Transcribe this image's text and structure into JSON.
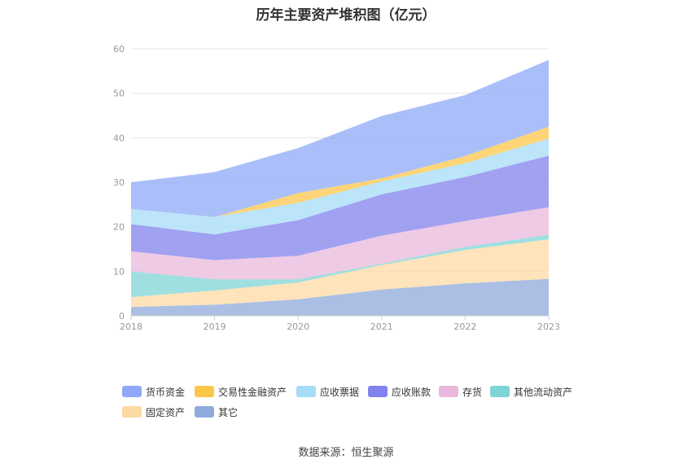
{
  "title": "历年主要资产堆积图（亿元）",
  "source": "数据来源：恒生聚源",
  "chart_data": {
    "type": "area",
    "stacked": true,
    "categories": [
      "2018",
      "2019",
      "2020",
      "2021",
      "2022",
      "2023"
    ],
    "ylim": [
      0,
      60
    ],
    "yticks": [
      0,
      10,
      20,
      30,
      40,
      50,
      60
    ],
    "grid": true,
    "legend_position": "bottom",
    "series": [
      {
        "name": "其它",
        "color": "#8faadc",
        "values": [
          2.0,
          2.5,
          3.7,
          5.9,
          7.3,
          8.3
        ]
      },
      {
        "name": "固定资产",
        "color": "#fdd9a4",
        "values": [
          2.2,
          3.2,
          3.8,
          5.5,
          7.5,
          8.9
        ]
      },
      {
        "name": "其他流动资产",
        "color": "#7fd4d4",
        "values": [
          5.8,
          2.5,
          0.7,
          0.3,
          0.7,
          1.0
        ]
      },
      {
        "name": "存货",
        "color": "#eab8dc",
        "values": [
          4.5,
          4.3,
          5.3,
          6.3,
          5.8,
          6.2
        ]
      },
      {
        "name": "应收账款",
        "color": "#8282ee",
        "values": [
          6.1,
          5.8,
          8.0,
          9.3,
          9.9,
          11.6
        ]
      },
      {
        "name": "应收票据",
        "color": "#a6dcf7",
        "values": [
          3.4,
          3.9,
          3.9,
          2.9,
          3.1,
          3.8
        ]
      },
      {
        "name": "交易性金融资产",
        "color": "#fcc64a",
        "values": [
          0.0,
          0.0,
          2.2,
          0.7,
          1.6,
          2.7
        ]
      },
      {
        "name": "货币资金",
        "color": "#8ea9f7",
        "values": [
          6.0,
          10.1,
          10.1,
          14.0,
          13.7,
          15.0
        ]
      }
    ]
  },
  "legend": {
    "items": [
      {
        "label": "货币资金",
        "color": "#8ea9f7"
      },
      {
        "label": "交易性金融资产",
        "color": "#fcc64a"
      },
      {
        "label": "应收票据",
        "color": "#a6dcf7"
      },
      {
        "label": "应收账款",
        "color": "#8282ee"
      },
      {
        "label": "存货",
        "color": "#eab8dc"
      },
      {
        "label": "其他流动资产",
        "color": "#7fd4d4"
      },
      {
        "label": "固定资产",
        "color": "#fdd9a4"
      },
      {
        "label": "其它",
        "color": "#8faadc"
      }
    ]
  }
}
